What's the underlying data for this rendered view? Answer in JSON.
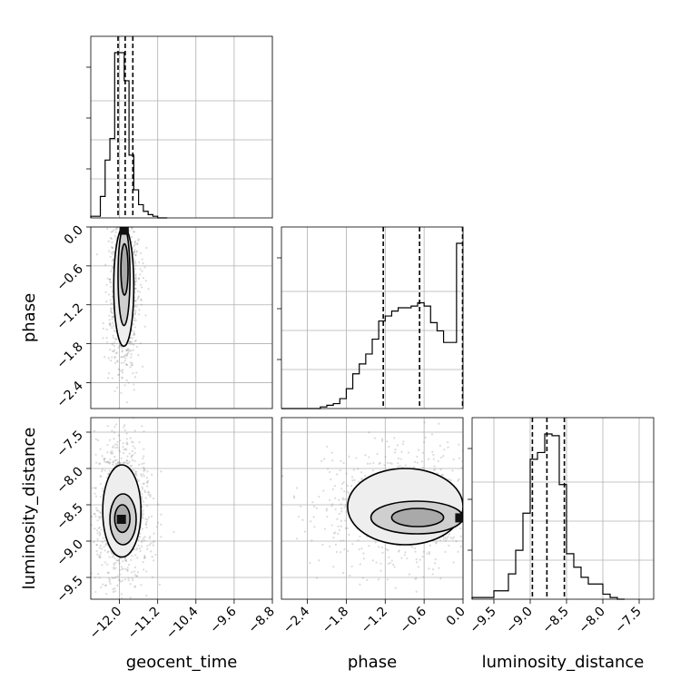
{
  "figure": {
    "type": "corner-plot"
  },
  "chart_data": {
    "type": "corner",
    "parameters": [
      "geocent_time",
      "phase",
      "luminosity_distance"
    ],
    "axes": {
      "geocent_time": {
        "label": "geocent_time",
        "range": [
          -12.6,
          -8.8
        ],
        "ticks": [
          -12.0,
          -11.2,
          -10.4,
          -9.6,
          -8.8
        ],
        "tick_labels": [
          "−12.0",
          "−11.2",
          "−10.4",
          "−9.6",
          "−8.8"
        ]
      },
      "phase": {
        "label": "phase",
        "range": [
          -2.8,
          0.0
        ],
        "ticks": [
          -2.4,
          -1.8,
          -1.2,
          -0.6,
          0.0
        ],
        "tick_labels": [
          "−2.4",
          "−1.8",
          "−1.2",
          "−0.6",
          "0.0"
        ]
      },
      "luminosity_distance": {
        "label": "luminosity_distance",
        "range": [
          -9.8,
          -7.3
        ],
        "ticks": [
          -9.5,
          -9.0,
          -8.5,
          -8.0,
          -7.5
        ],
        "tick_labels": [
          "−9.5",
          "−9.0",
          "−8.5",
          "−8.0",
          "−7.5"
        ]
      }
    },
    "histograms": [
      {
        "param": "geocent_time",
        "bin_edges": [
          -12.6,
          -12.4,
          -12.3,
          -12.2,
          -12.1,
          -12.0,
          -11.9,
          -11.8,
          -11.7,
          -11.6,
          -11.5,
          -11.4,
          -11.3,
          -11.2,
          -11.0
        ],
        "counts": [
          0.01,
          0.13,
          0.35,
          0.48,
          1.0,
          1.0,
          0.83,
          0.38,
          0.17,
          0.08,
          0.04,
          0.02,
          0.01,
          0.0
        ],
        "quantiles": [
          -12.03,
          -11.88,
          -11.72
        ]
      },
      {
        "param": "phase",
        "bin_edges": [
          -2.8,
          -2.2,
          -2.1,
          -2.0,
          -1.9,
          -1.8,
          -1.7,
          -1.6,
          -1.5,
          -1.4,
          -1.3,
          -1.2,
          -1.1,
          -1.0,
          -0.9,
          -0.8,
          -0.7,
          -0.6,
          -0.5,
          -0.4,
          -0.3,
          -0.2,
          -0.1,
          0.0
        ],
        "counts": [
          0.0,
          0.01,
          0.02,
          0.03,
          0.06,
          0.12,
          0.21,
          0.27,
          0.33,
          0.42,
          0.53,
          0.56,
          0.59,
          0.61,
          0.61,
          0.62,
          0.64,
          0.62,
          0.52,
          0.47,
          0.4,
          0.4,
          1.0
        ],
        "quantiles": [
          -1.23,
          -0.67,
          0.0
        ]
      },
      {
        "param": "luminosity_distance",
        "bin_edges": [
          -9.8,
          -9.5,
          -9.3,
          -9.2,
          -9.1,
          -9.0,
          -8.9,
          -8.8,
          -8.7,
          -8.6,
          -8.5,
          -8.4,
          -8.3,
          -8.2,
          -8.0,
          -7.9,
          -7.8,
          -7.7
        ],
        "counts": [
          0.01,
          0.05,
          0.15,
          0.29,
          0.51,
          0.83,
          0.87,
          0.98,
          0.97,
          0.68,
          0.27,
          0.19,
          0.13,
          0.09,
          0.03,
          0.01,
          0.0
        ],
        "quantiles": [
          -8.97,
          -8.77,
          -8.53
        ]
      }
    ],
    "joint": [
      {
        "x": "geocent_time",
        "y": "phase",
        "peak": [
          -11.9,
          -0.05
        ],
        "levels": [
          [
            -12.12,
            -1.84,
            -11.7,
            0.0
          ],
          [
            -12.03,
            -1.52,
            -11.78,
            0.0
          ],
          [
            -11.97,
            -1.05,
            -11.82,
            -0.26
          ]
        ]
      },
      {
        "x": "geocent_time",
        "y": "luminosity_distance",
        "peak": [
          -11.96,
          -8.7
        ],
        "levels": [
          [
            -12.35,
            -9.22,
            -11.55,
            -7.95
          ],
          [
            -12.2,
            -9.05,
            -11.65,
            -8.35
          ],
          [
            -12.1,
            -8.88,
            -11.78,
            -8.5
          ]
        ]
      },
      {
        "x": "phase",
        "y": "luminosity_distance",
        "peak": [
          -0.05,
          -8.68
        ],
        "levels": [
          [
            -1.78,
            -9.05,
            0.0,
            -8.0
          ],
          [
            -1.42,
            -8.9,
            0.0,
            -8.45
          ],
          [
            -1.1,
            -8.8,
            -0.3,
            -8.55
          ]
        ]
      }
    ]
  }
}
